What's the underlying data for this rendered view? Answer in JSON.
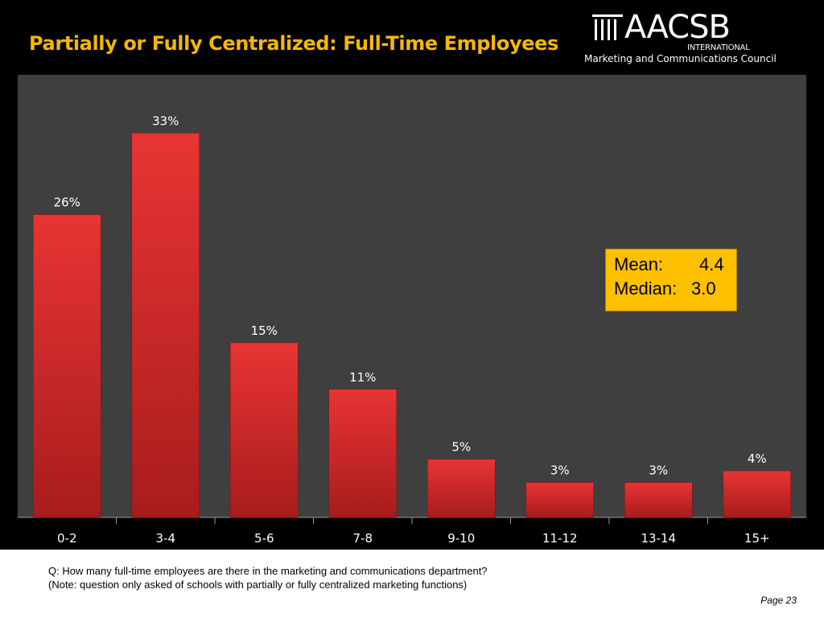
{
  "header": {
    "title": "Partially or Fully Centralized: Full-Time Employees",
    "logo": {
      "name": "AACSB",
      "subtitle": "INTERNATIONAL",
      "council": "Marketing and Communications Council"
    }
  },
  "chart_data": {
    "type": "bar",
    "categories": [
      "0-2",
      "3-4",
      "5-6",
      "7-8",
      "9-10",
      "11-12",
      "13-14",
      "15+"
    ],
    "values": [
      26,
      33,
      15,
      11,
      5,
      3,
      3,
      4
    ],
    "value_labels": [
      "26%",
      "33%",
      "15%",
      "11%",
      "5%",
      "3%",
      "3%",
      "4%"
    ],
    "ylim": [
      0,
      38
    ],
    "grid": false,
    "legend": "none",
    "colors": {
      "bar": "#d42a2a",
      "plot_bg": "#3f3f3f",
      "label": "#ffffff"
    }
  },
  "stats": {
    "mean_label": "Mean:",
    "mean_value": "4.4",
    "median_label": "Median:",
    "median_value": "3.0"
  },
  "footer": {
    "question": "Q: How many full-time employees are there in the marketing and communications department?",
    "note": "(Note: question only asked of schools with partially or fully centralized marketing functions)",
    "page": "Page 23"
  }
}
